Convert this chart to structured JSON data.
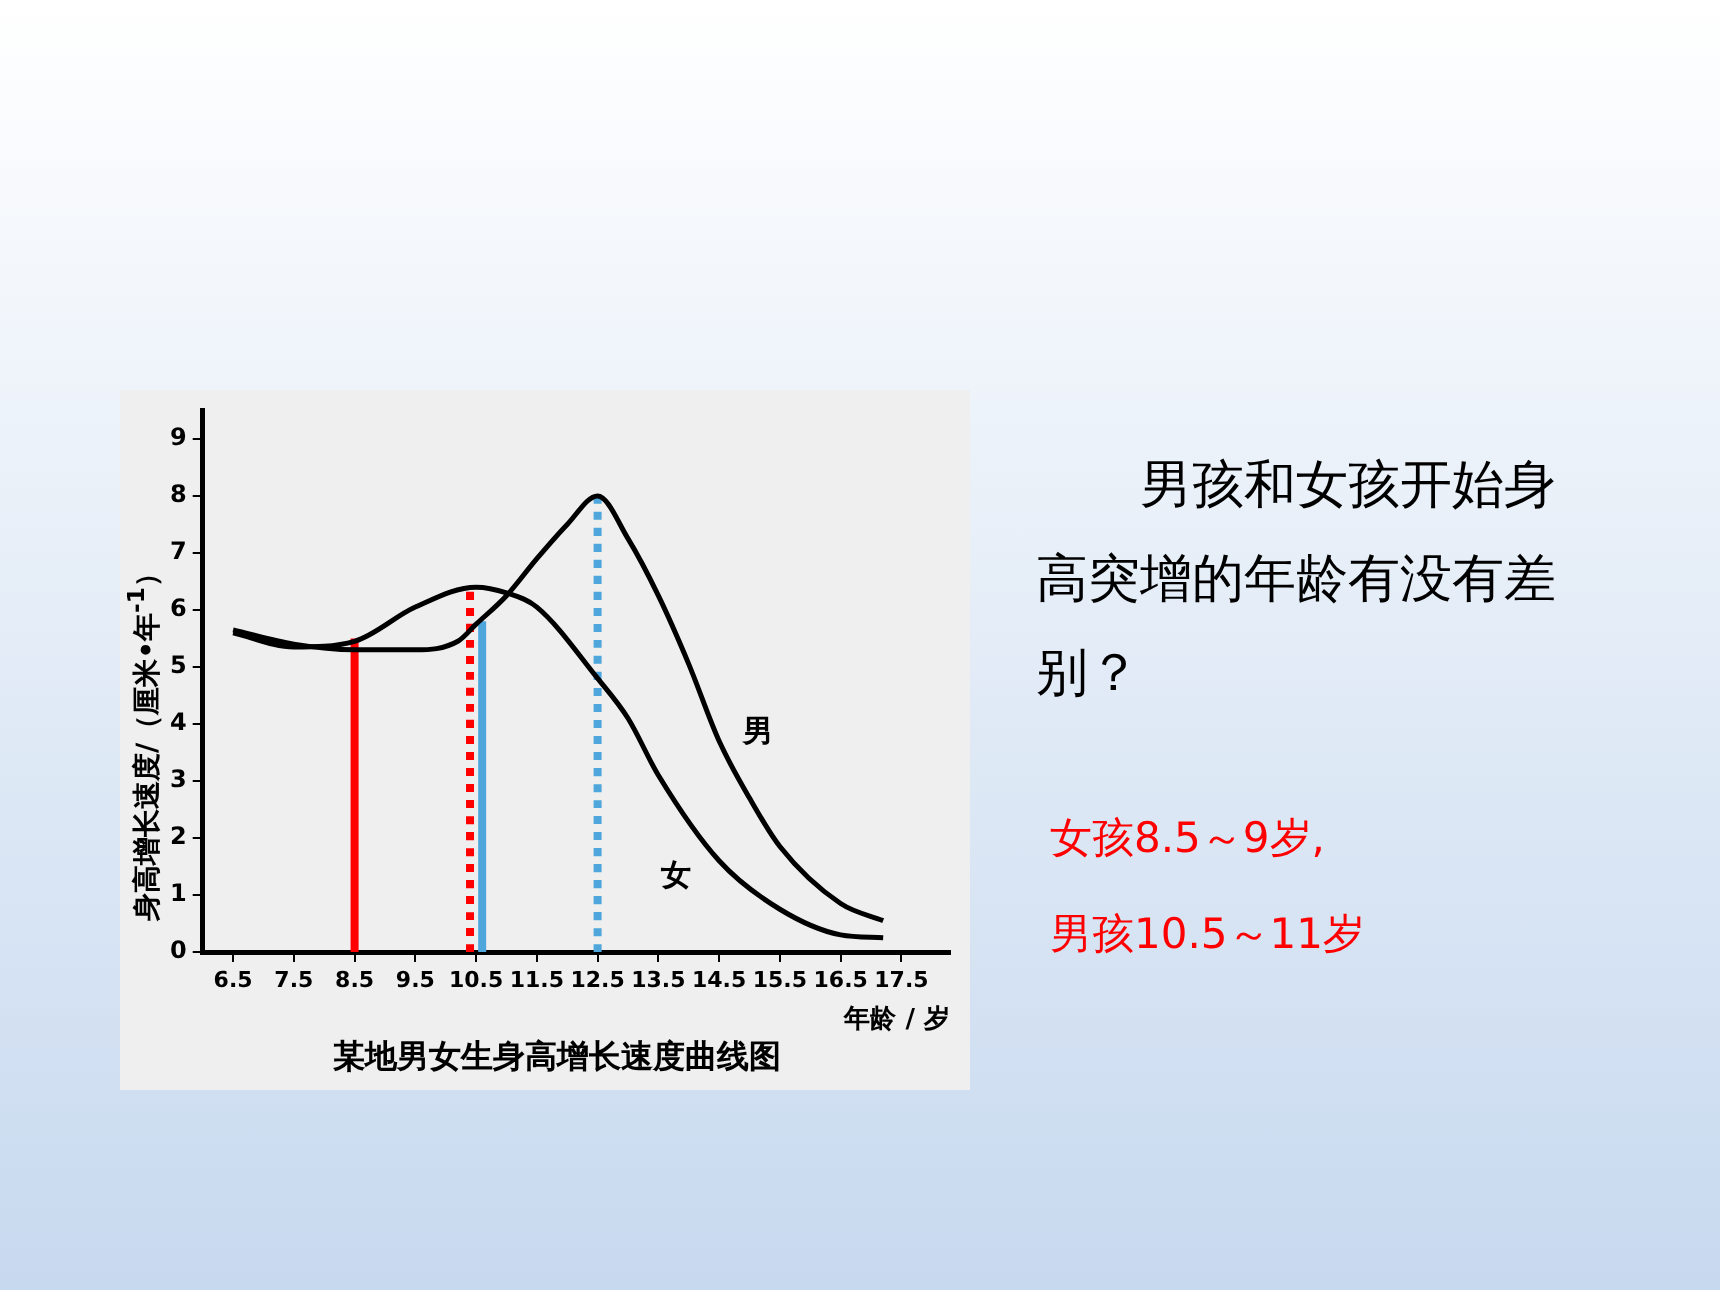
{
  "chart_data": {
    "type": "line",
    "title": "某地男女生身高增长速度曲线图",
    "xlabel": "年龄 / 岁",
    "ylabel": "身高增长速度/（厘米•年$^{-1}$）",
    "xlim": [
      6,
      18.3
    ],
    "xticks": [
      6.5,
      7.5,
      8.5,
      9.5,
      10.5,
      11.5,
      12.5,
      13.5,
      14.5,
      15.5,
      16.5,
      17.5
    ],
    "ylim": [
      0,
      9.5
    ],
    "yticks": [
      0,
      1,
      2,
      3,
      4,
      5,
      6,
      7,
      8,
      9
    ],
    "grid": false,
    "legend": false,
    "marker": "none",
    "series": [
      {
        "name": "男",
        "color": "#000000",
        "x": [
          6.5,
          7.5,
          8.5,
          9.5,
          10.2,
          10.5,
          11,
          11.5,
          12,
          12.5,
          13,
          13.5,
          14,
          14.5,
          15,
          15.5,
          16.5,
          17.2
        ],
        "values": [
          5.65,
          5.4,
          5.3,
          5.3,
          5.45,
          5.75,
          6.25,
          6.9,
          7.5,
          8.0,
          7.25,
          6.25,
          5.05,
          3.7,
          2.7,
          1.85,
          0.85,
          0.55
        ]
      },
      {
        "name": "女",
        "color": "#000000",
        "x": [
          6.5,
          7.5,
          8.5,
          9.5,
          10.5,
          11,
          11.5,
          12.5,
          13,
          13.5,
          14.5,
          15.5,
          16.5,
          17.2
        ],
        "values": [
          5.6,
          5.35,
          5.45,
          6.05,
          6.4,
          6.3,
          6.05,
          4.8,
          4.1,
          3.1,
          1.6,
          0.75,
          0.3,
          0.25
        ]
      },
      {
        "color": "#ff0000",
        "line_style": "solid",
        "x": [
          8.5,
          8.5
        ],
        "values": [
          0,
          5.5
        ]
      },
      {
        "color": "#ff0000",
        "line_style": "dotted",
        "x": [
          10.4,
          10.4
        ],
        "values": [
          0,
          6.45
        ]
      },
      {
        "color": "#4ea6dc",
        "line_style": "solid",
        "x": [
          10.6,
          10.6
        ],
        "values": [
          0,
          5.8
        ]
      },
      {
        "color": "#4ea6dc",
        "line_style": "dotted",
        "x": [
          12.5,
          12.5
        ],
        "values": [
          0,
          8
        ]
      }
    ],
    "annotations": [
      "男孩和女孩开始身高突增的年龄有没有差别？",
      "女孩8.5～9岁,",
      "男孩10.5～11岁"
    ]
  }
}
